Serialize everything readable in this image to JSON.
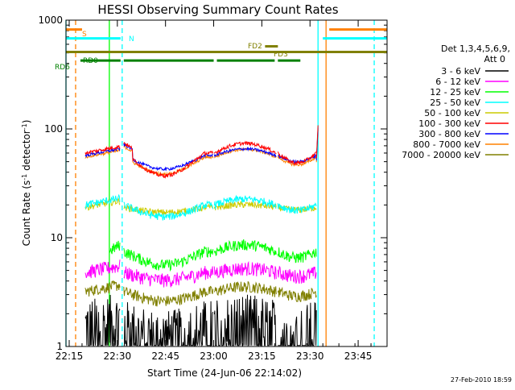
{
  "chart_data": {
    "type": "line",
    "title": "HESSI Observing Summary Count Rates",
    "xlabel": "Start Time (24-Jun-06 22:14:02)",
    "ylabel_main": "Count Rate (s",
    "ylabel_sup1": "-1",
    "ylabel_mid": " detector",
    "ylabel_sup2": "-1",
    "ylabel_end": ")",
    "y_scale": "log",
    "ylim": [
      1,
      1000
    ],
    "xlim_minutes": [
      0,
      100
    ],
    "x_ticks": [
      {
        "label": "22:15",
        "m": 1
      },
      {
        "label": "22:30",
        "m": 16
      },
      {
        "label": "22:45",
        "m": 31
      },
      {
        "label": "23:00",
        "m": 46
      },
      {
        "label": "23:15",
        "m": 61
      },
      {
        "label": "23:30",
        "m": 76
      },
      {
        "label": "23:45",
        "m": 91
      }
    ],
    "y_ticks": [
      {
        "label": "1",
        "v": 1
      },
      {
        "label": "10",
        "v": 10
      },
      {
        "label": "100",
        "v": 100
      },
      {
        "label": "1000",
        "v": 1000
      }
    ],
    "legend_header": [
      "Det 1,3,4,5,6,9,",
      "Att 0"
    ],
    "legend_placement": "right",
    "series": [
      {
        "name": "3 - 6 keV",
        "color": "#000000",
        "level": 1.5,
        "dip": 0.2,
        "noise": 0.8,
        "data_gap": true
      },
      {
        "name": "6 - 12 keV",
        "color": "#ff00ff",
        "level": 4.8,
        "dip": 0.15,
        "noise": 0.15
      },
      {
        "name": "12 - 25 keV",
        "color": "#00ff00",
        "level": 7.5,
        "dip": 0.25,
        "noise": 0.12
      },
      {
        "name": "25 - 50 keV",
        "color": "#00ffff",
        "level": 20,
        "dip": 0.22,
        "noise": 0.08
      },
      {
        "name": "50 - 100 keV",
        "color": "#cccc00",
        "level": 19,
        "dip": 0.1,
        "noise": 0.07
      },
      {
        "name": "100 - 300 keV",
        "color": "#ff0000",
        "level": 60,
        "dip": 0.38,
        "noise": 0.04
      },
      {
        "name": "300 - 800 keV",
        "color": "#0000ff",
        "level": 57,
        "dip": 0.25,
        "noise": 0.03
      },
      {
        "name": "800 - 7000 keV",
        "color": "#ff8000",
        "level": 55,
        "dip": 0.3,
        "noise": 0.03
      },
      {
        "name": "7000 - 20000 keV",
        "color": "#808000",
        "level": 3.2,
        "dip": 0.18,
        "noise": 0.12
      }
    ],
    "flags": [
      {
        "name": "S",
        "color": "#ff8000",
        "level": 820,
        "segments": [
          [
            0,
            5
          ],
          [
            82,
            100
          ]
        ]
      },
      {
        "name": "N",
        "color": "#00ffff",
        "level": 680,
        "segments": [
          [
            0,
            17
          ],
          [
            80,
            100
          ]
        ]
      },
      {
        "name": "FD2",
        "color": "#808000",
        "level": 575,
        "segments": [
          [
            62,
            66
          ]
        ]
      },
      {
        "name": "FD3",
        "color": "#808000",
        "level": 510,
        "segments": [
          [
            0,
            100
          ]
        ]
      },
      {
        "name": "RD0",
        "color": "#008000",
        "level": 425,
        "segments": [
          [
            4.5,
            17
          ],
          [
            18,
            46
          ],
          [
            47,
            65
          ],
          [
            66,
            73
          ]
        ]
      }
    ],
    "flag_labels": [
      {
        "text": "S",
        "color": "#ff8000"
      },
      {
        "text": "N",
        "color": "#00ffff"
      },
      {
        "text": "FD2",
        "color": "#808000"
      },
      {
        "text": "FD3",
        "color": "#808000"
      },
      {
        "text": "RD0",
        "color": "#008000"
      },
      {
        "text": "RD6",
        "color": "#008000"
      }
    ],
    "vertical_markers": [
      {
        "m": 0,
        "color": "#00ffff",
        "style": "solid"
      },
      {
        "m": 3,
        "color": "#ff8000",
        "style": "dashed"
      },
      {
        "m": 13.5,
        "color": "#00ff00",
        "style": "solid"
      },
      {
        "m": 17.5,
        "color": "#00ffff",
        "style": "dashed"
      },
      {
        "m": 78.5,
        "color": "#00ffff",
        "style": "solid"
      },
      {
        "m": 81,
        "color": "#ff8000",
        "style": "solid"
      },
      {
        "m": 96,
        "color": "#00ffff",
        "style": "dashed"
      }
    ],
    "grid": false
  },
  "footer": {
    "timestamp": "27-Feb-2010 18:59"
  }
}
